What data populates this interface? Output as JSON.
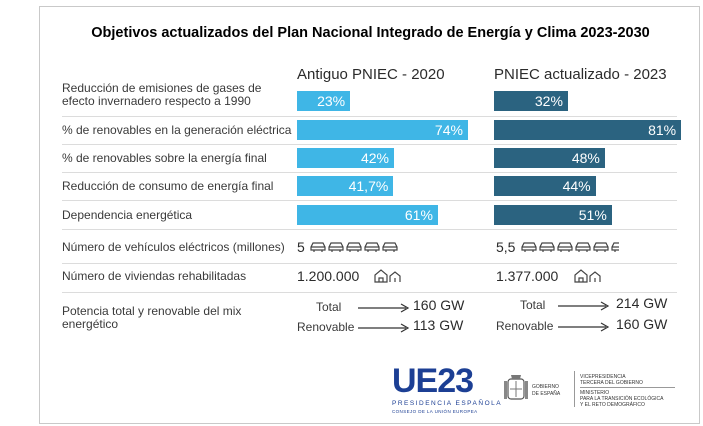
{
  "chart_data": {
    "type": "bar",
    "title": "Objetivos actualizados del Plan Nacional Integrado de Energía y Clima 2023-2030",
    "series": [
      {
        "name": "Antiguo PNIEC - 2020",
        "color": "#3fb6e6",
        "values": [
          23,
          74,
          42,
          41.7,
          61
        ],
        "labels": [
          "23%",
          "74%",
          "42%",
          "41,7%",
          "61%"
        ]
      },
      {
        "name": "PNIEC actualizado - 2023",
        "color": "#2b6380",
        "values": [
          32,
          81,
          48,
          44,
          51
        ],
        "labels": [
          "32%",
          "81%",
          "48%",
          "44%",
          "51%"
        ]
      }
    ],
    "categories": [
      "Reducción de emisiones de gases de efecto invernadero respecto a 1990",
      "% de renovables en la generación eléctrica",
      "% de renovables sobre la energía final",
      "Reducción de consumo de energía final",
      "Dependencia energética"
    ],
    "xlim": [
      0,
      100
    ]
  },
  "extra_rows": {
    "ev": {
      "label": "Número de vehículos eléctricos (millones)",
      "old": "5",
      "new": "5,5",
      "old_cars": 5,
      "new_cars": 5.5
    },
    "homes": {
      "label": "Número de viviendas rehabilitadas",
      "old": "1.200.000",
      "new": "1.377.000"
    },
    "power": {
      "label": "Potencia total y renovable del mix energético",
      "old": {
        "total_label": "Total",
        "total": "160 GW",
        "ren_label": "Renovable",
        "ren": "113 GW"
      },
      "new": {
        "total_label": "Total",
        "total": "214 GW",
        "ren_label": "Renovable",
        "ren": "160 GW"
      }
    }
  },
  "logos": {
    "ue_text": "UE23",
    "ue_sub1": "PRESIDENCIA ESPAÑOLA",
    "ue_sub2": "CONSEJO DE LA UNIÓN EUROPEA",
    "gov1": "GOBIERNO",
    "gov2": "DE ESPAÑA",
    "vice1": "VICEPRESIDENCIA",
    "vice2": "TERCERA DEL GOBIERNO",
    "min1": "MINISTERIO",
    "min2": "PARA LA TRANSICIÓN ECOLÓGICA",
    "min3": "Y EL RETO DEMOGRÁFICO"
  }
}
